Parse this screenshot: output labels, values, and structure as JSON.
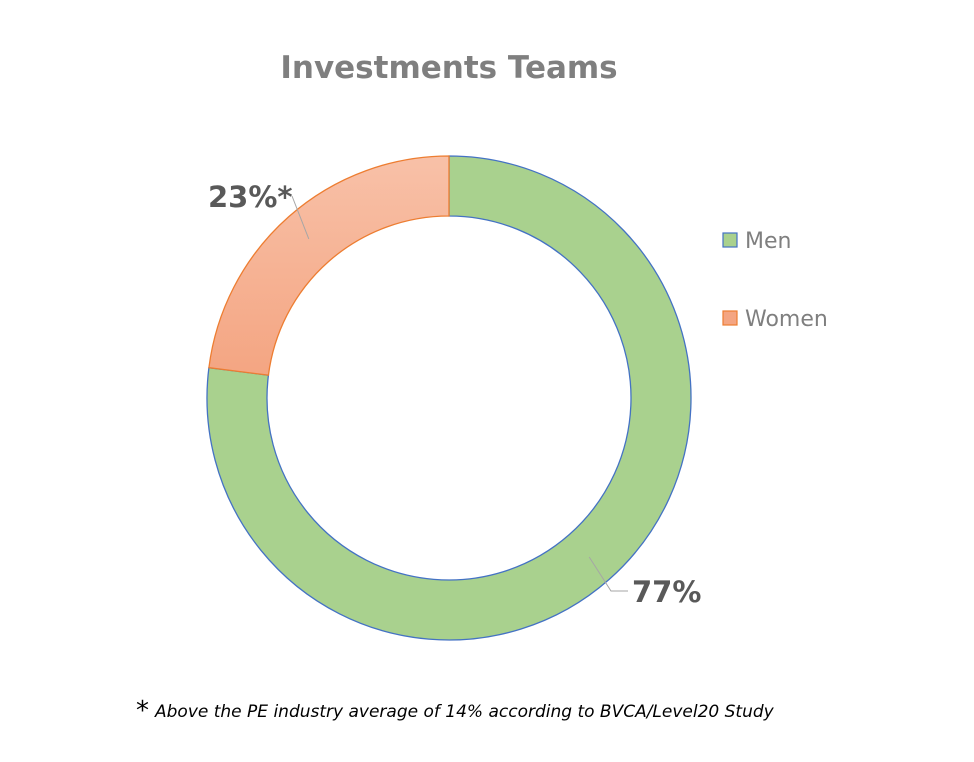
{
  "chart_data": {
    "type": "pie",
    "variant": "doughnut",
    "title": "Investments Teams",
    "categories": [
      "Men",
      "Women"
    ],
    "values": [
      77,
      23
    ],
    "data_labels": [
      "77%",
      "23%*"
    ],
    "unit": "%",
    "legend": {
      "position": "right",
      "entries": [
        "Men",
        "Women"
      ]
    }
  },
  "colors": {
    "men_fill": "#a9d18e",
    "men_stroke": "#4472c4",
    "women_fill_top": "#f8c1a8",
    "women_fill_bottom": "#f4a582",
    "women_stroke": "#ed7d31",
    "title": "#7f7f7f",
    "data_label": "#595959",
    "legend_text": "#7f7f7f",
    "leader_line": "#a6a6a6"
  },
  "footnote": {
    "marker": "*",
    "text": "Above the PE industry average of 14% according to BVCA/Level20 Study"
  }
}
